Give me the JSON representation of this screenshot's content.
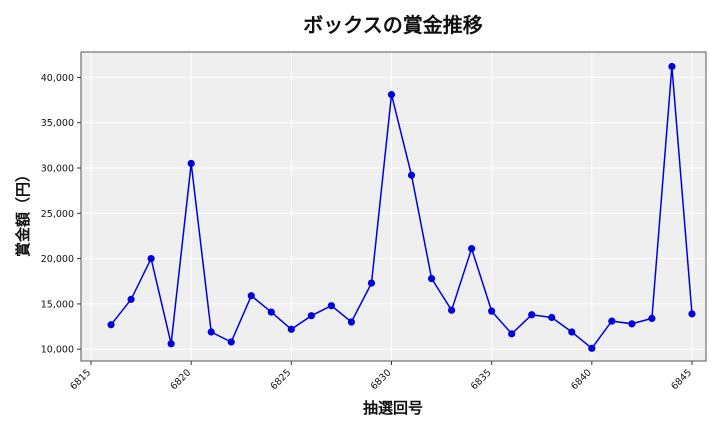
{
  "chart_data": {
    "type": "line",
    "title": "ボックスの賞金推移",
    "xlabel": "抽選回号",
    "ylabel": "賞金額（円）",
    "xlim": [
      6814.5,
      6845.7
    ],
    "ylim": [
      8700,
      42800
    ],
    "x_ticks": [
      6815,
      6820,
      6825,
      6830,
      6835,
      6840,
      6845
    ],
    "x_tick_labels": [
      "6815",
      "6820",
      "6825",
      "6830",
      "6835",
      "6840",
      "6845"
    ],
    "y_ticks": [
      10000,
      15000,
      20000,
      25000,
      30000,
      35000,
      40000
    ],
    "y_tick_labels": [
      "10,000",
      "15,000",
      "20,000",
      "25,000",
      "30,000",
      "35,000",
      "40,000"
    ],
    "grid": true,
    "colors": {
      "line": "#0000dd",
      "plot_bg": "#efefef",
      "grid": "#ffffff"
    },
    "series": [
      {
        "x": [
          6816,
          6817,
          6818,
          6819,
          6820,
          6821,
          6822,
          6823,
          6824,
          6825,
          6826,
          6827,
          6828,
          6829,
          6830,
          6831,
          6832,
          6833,
          6834,
          6835,
          6836,
          6837,
          6838,
          6839,
          6840,
          6841,
          6842,
          6843,
          6844,
          6845
        ],
        "values": [
          12700,
          15500,
          20000,
          10600,
          30500,
          11900,
          10800,
          15900,
          14100,
          12200,
          13700,
          14800,
          13000,
          17300,
          38100,
          29200,
          17800,
          14300,
          21100,
          14200,
          11700,
          13800,
          13500,
          11900,
          10100,
          13100,
          12800,
          13400,
          41200,
          13900
        ]
      }
    ]
  }
}
